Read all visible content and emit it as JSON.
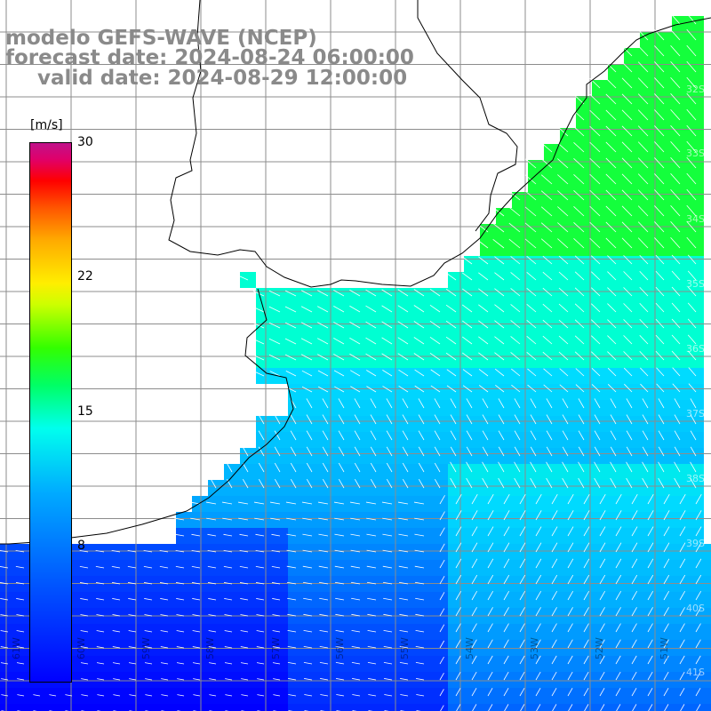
{
  "title": {
    "model": "modelo GEFS-WAVE (NCEP)",
    "forecast": "forecast date: 2024-08-24 06:00:00",
    "valid": "valid date: 2024-08-29 12:00:00"
  },
  "colorbar": {
    "unit": "[m/s]",
    "ticks": [
      "30",
      "22",
      "15",
      "8"
    ],
    "tick_values": [
      30,
      22,
      15,
      8
    ],
    "range": [
      0,
      30
    ]
  },
  "axis_labels": {
    "longitudes": [
      "61W",
      "60W",
      "59W",
      "58W",
      "57W",
      "56W",
      "55W",
      "54W",
      "53W",
      "52W",
      "51W"
    ],
    "latitudes": [
      "32S",
      "33S",
      "34S",
      "35S",
      "36S",
      "37S",
      "38S",
      "39S",
      "40S",
      "41S"
    ]
  },
  "colors": {
    "land": "#ffffff",
    "grid": "#8c8c8c",
    "coast": "#000000",
    "title": "#8a8a8a",
    "vector": "#ffffff"
  }
}
